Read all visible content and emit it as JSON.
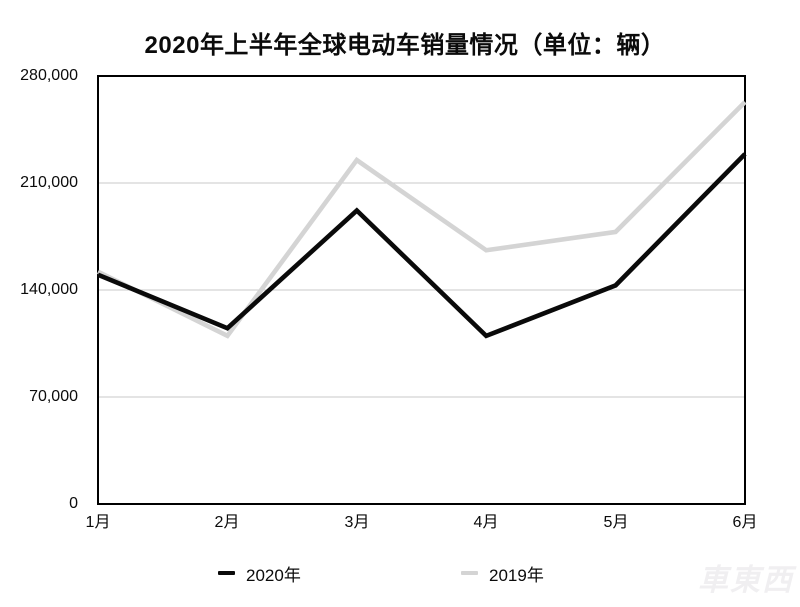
{
  "title": "2020年上半年全球电动车销量情况（单位：辆）",
  "watermark": "車東西",
  "legend": {
    "items": [
      {
        "label": "2020年",
        "color": "#0a0a0a"
      },
      {
        "label": "2019年",
        "color": "#d4d4d4"
      }
    ]
  },
  "colors": {
    "frame": "#000000",
    "grid": "#c9c9c9",
    "background": "#ffffff",
    "series_2020": "#0a0a0a",
    "series_2019": "#d4d4d4"
  },
  "chart_data": {
    "type": "line",
    "title": "2020年上半年全球电动车销量情况（单位：辆）",
    "categories": [
      "1月",
      "2月",
      "3月",
      "4月",
      "5月",
      "6月"
    ],
    "series": [
      {
        "name": "2020年",
        "color": "#0a0a0a",
        "values": [
          150000,
          115000,
          192000,
          110000,
          143000,
          229000
        ]
      },
      {
        "name": "2019年",
        "color": "#d4d4d4",
        "values": [
          152000,
          110000,
          225000,
          166000,
          178000,
          263000
        ]
      }
    ],
    "xlabel": "",
    "ylabel": "",
    "ylim": [
      0,
      280000
    ],
    "ytick_values": [
      0,
      70000,
      140000,
      210000,
      280000
    ],
    "ytick_labels": [
      "0",
      "70,000",
      "140,000",
      "210,000",
      "280,000"
    ],
    "grid": "horizontal",
    "legend_position": "bottom"
  }
}
